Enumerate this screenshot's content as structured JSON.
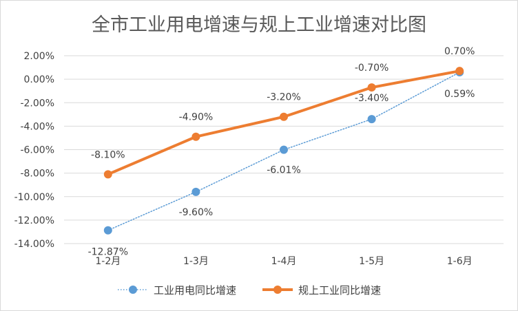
{
  "chart_data": {
    "type": "line",
    "title": "全市工业用电增速与规上工业增速对比图",
    "xlabel": "",
    "ylabel": "",
    "categories": [
      "1-2月",
      "1-3月",
      "1-4月",
      "1-5月",
      "1-6月"
    ],
    "ylim": [
      -14,
      2
    ],
    "yticks": [
      2,
      0,
      -2,
      -4,
      -6,
      -8,
      -10,
      -12,
      -14
    ],
    "ytick_labels": [
      "2.00%",
      "0.00%",
      "-2.00%",
      "-4.00%",
      "-6.00%",
      "-8.00%",
      "-10.00%",
      "-12.00%",
      "-14.00%"
    ],
    "grid": true,
    "legend_position": "bottom",
    "series": [
      {
        "name": "工业用电同比增速",
        "values": [
          -12.87,
          -9.6,
          -6.01,
          -3.4,
          0.59
        ],
        "labels": [
          "-12.87%",
          "-9.60%",
          "-6.01%",
          "-3.40%",
          "0.59%"
        ],
        "color": "#5b9bd5",
        "style": "dotted"
      },
      {
        "name": "规上工业同比增速",
        "values": [
          -8.1,
          -4.9,
          -3.2,
          -0.7,
          0.7
        ],
        "labels": [
          "-8.10%",
          "-4.90%",
          "-3.20%",
          "-0.70%",
          "0.70%"
        ],
        "color": "#ed7d31",
        "style": "solid"
      }
    ]
  }
}
